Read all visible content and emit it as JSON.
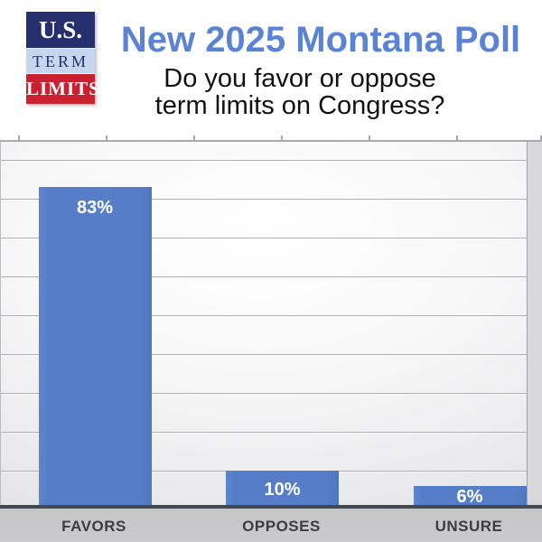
{
  "header": {
    "logo": {
      "line1": "U.S.",
      "line2": "TERM",
      "line3": "LIMITS",
      "navy_color": "#252f6d",
      "light_blue_color": "#c8d5ef",
      "red_color": "#c92130"
    },
    "title": "New 2025 Montana Poll",
    "title_color": "#5b83d3",
    "subtitle_line1": "Do you favor or oppose",
    "subtitle_line2": "term limits on Congress?"
  },
  "chart_data": {
    "type": "bar",
    "categories": [
      "FAVORS",
      "OPPOSES",
      "UNSURE"
    ],
    "values": [
      83,
      10,
      6
    ],
    "value_labels": [
      "83%",
      "10%",
      "6%"
    ],
    "title": "",
    "xlabel": "",
    "ylabel": "",
    "ylim": [
      0,
      100
    ],
    "gridline_step_pct": 10,
    "grid": "horizontal",
    "legend": "none",
    "bar_color": "#567ec8",
    "value_label_color": "#ffffff",
    "category_label_color": "#3d3d3d",
    "plot_background": "gray-to-white radial gradient",
    "axis_color": "#45484e"
  }
}
